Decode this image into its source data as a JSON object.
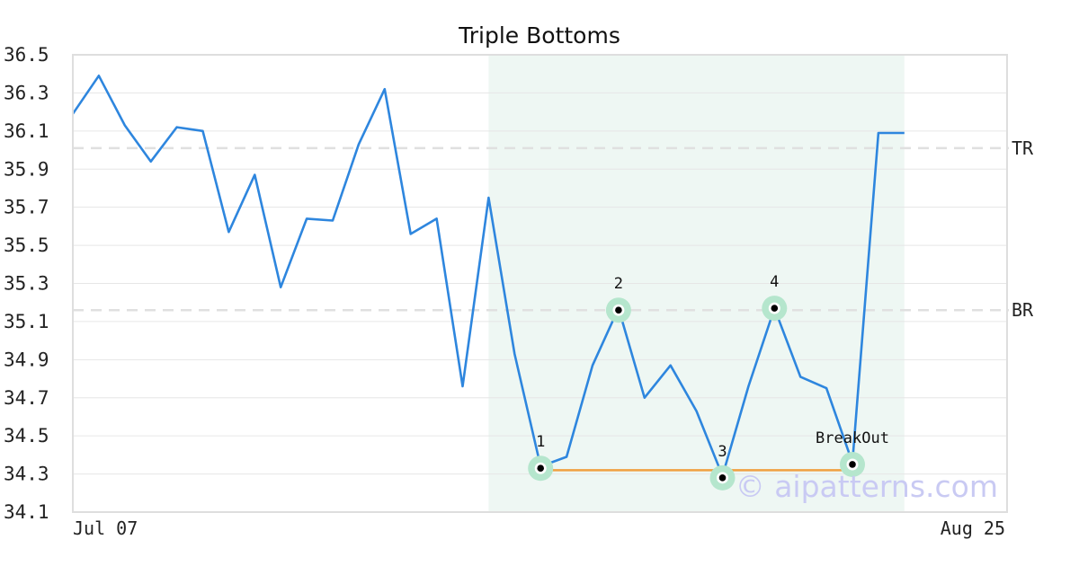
{
  "chart_data": {
    "type": "line",
    "title": "Triple Bottoms",
    "xlabel": "",
    "ylabel": "",
    "ylim": [
      34.1,
      36.5
    ],
    "y_ticks": [
      "34.1",
      "34.3",
      "34.5",
      "34.7",
      "34.9",
      "35.1",
      "35.3",
      "35.5",
      "35.7",
      "35.9",
      "36.1",
      "36.3",
      "36.5"
    ],
    "x_tick_labels": [
      "Jul 07",
      "Aug 25"
    ],
    "grid": "horizontal",
    "values": [
      36.19,
      36.39,
      36.13,
      35.94,
      36.12,
      36.1,
      35.57,
      35.87,
      35.28,
      35.64,
      35.63,
      36.03,
      36.32,
      35.56,
      35.64,
      34.76,
      35.75,
      34.93,
      34.34,
      34.39,
      34.87,
      35.17,
      34.7,
      34.87,
      34.63,
      34.29,
      34.76,
      35.17,
      34.81,
      34.75,
      34.36,
      36.09,
      36.09
    ],
    "highlight_range": [
      16,
      32
    ],
    "highlight_color": "#eef7f3",
    "line_color": "#2e86de",
    "reference_lines": [
      {
        "label": "TR",
        "value": 36.01
      },
      {
        "label": "BR",
        "value": 35.16
      }
    ],
    "support_line": {
      "from_index": 18,
      "to_index": 30,
      "value": 34.32,
      "color": "#f0a040"
    },
    "pattern_points": [
      {
        "label": "1",
        "index": 18,
        "value": 34.33,
        "label_position": "above"
      },
      {
        "label": "2",
        "index": 21,
        "value": 35.16,
        "label_position": "above"
      },
      {
        "label": "3",
        "index": 25,
        "value": 34.28,
        "label_position": "above"
      },
      {
        "label": "4",
        "index": 27,
        "value": 35.17,
        "label_position": "above"
      },
      {
        "label": "BreakOut",
        "index": 30,
        "value": 34.35,
        "label_position": "above"
      }
    ],
    "marker_color": "#b5e6cd"
  },
  "watermark": "© aipatterns.com"
}
